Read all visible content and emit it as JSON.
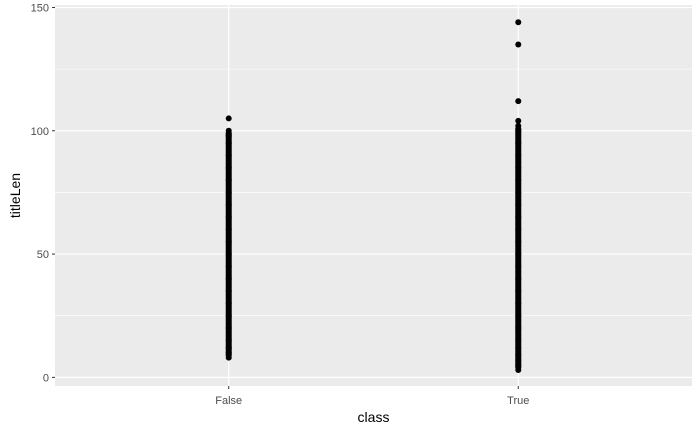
{
  "chart_data": {
    "type": "scatter",
    "title": "",
    "xlabel": "class",
    "ylabel": "titleLen",
    "categories": [
      "False",
      "True"
    ],
    "ylim": [
      -3.5,
      151
    ],
    "yticks": [
      0,
      50,
      100,
      150
    ],
    "grid": true,
    "colors": {
      "panel": "#ebebeb",
      "grid_major": "#ffffff",
      "point": "#000000",
      "tick_label": "#4d4d4d",
      "axis_title": "#000000"
    },
    "series": [
      {
        "category": "False",
        "y_range": [
          8,
          100
        ],
        "points": [
          8,
          9,
          10,
          12,
          15,
          20,
          25,
          30,
          35,
          40,
          45,
          50,
          55,
          60,
          65,
          70,
          75,
          80,
          85,
          90,
          95,
          98,
          99,
          100,
          105
        ]
      },
      {
        "category": "True",
        "y_range": [
          3,
          102
        ],
        "points": [
          3,
          4,
          5,
          7,
          9,
          12,
          15,
          20,
          25,
          30,
          35,
          40,
          45,
          50,
          55,
          60,
          65,
          70,
          75,
          80,
          85,
          90,
          95,
          100,
          102,
          104,
          112,
          135,
          144
        ]
      }
    ]
  }
}
